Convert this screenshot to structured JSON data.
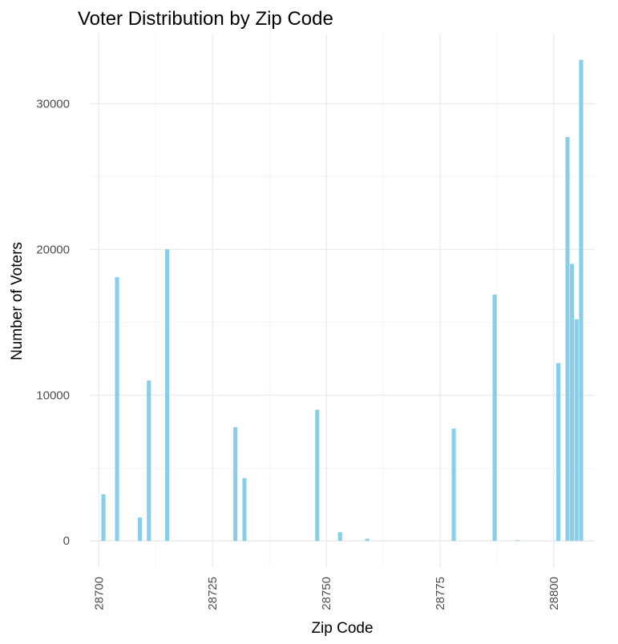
{
  "chart_data": {
    "type": "bar",
    "title": "Voter Distribution by Zip Code",
    "xlabel": "Zip Code",
    "ylabel": "Number of Voters",
    "bar_color": "#87ceeb",
    "grid": true,
    "legend": "none",
    "xlim": [
      28698,
      28809
    ],
    "ylim": [
      -1800,
      34800
    ],
    "x_ticks": [
      28700,
      28725,
      28750,
      28775,
      28800
    ],
    "y_ticks": [
      0,
      10000,
      20000,
      30000
    ],
    "x_tick_labels": [
      "28700",
      "28725",
      "28750",
      "28775",
      "28800"
    ],
    "y_tick_labels": [
      "0",
      "10000",
      "20000",
      "30000"
    ],
    "bars": [
      {
        "x": 28701,
        "y": 3200
      },
      {
        "x": 28704,
        "y": 18100
      },
      {
        "x": 28709,
        "y": 1600
      },
      {
        "x": 28711,
        "y": 11000
      },
      {
        "x": 28715,
        "y": 20000
      },
      {
        "x": 28730,
        "y": 7800
      },
      {
        "x": 28732,
        "y": 4300
      },
      {
        "x": 28748,
        "y": 9000
      },
      {
        "x": 28753,
        "y": 600
      },
      {
        "x": 28759,
        "y": 150
      },
      {
        "x": 28778,
        "y": 7700
      },
      {
        "x": 28787,
        "y": 16900
      },
      {
        "x": 28792,
        "y": 50
      },
      {
        "x": 28801,
        "y": 12200
      },
      {
        "x": 28803,
        "y": 27700
      },
      {
        "x": 28804,
        "y": 19000
      },
      {
        "x": 28805,
        "y": 15200
      },
      {
        "x": 28806,
        "y": 33000
      }
    ]
  }
}
